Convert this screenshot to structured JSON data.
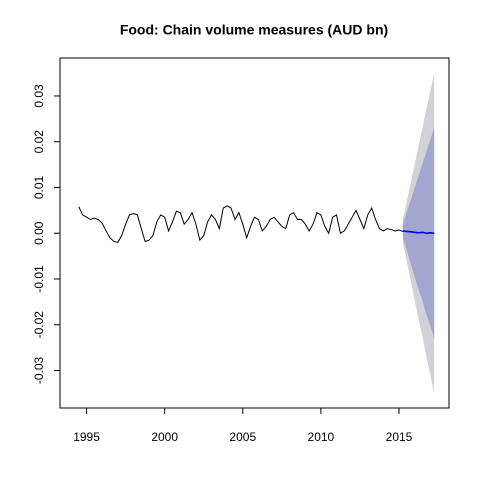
{
  "chart_data": {
    "type": "line",
    "title": "Food: Chain volume measures (AUD bn)",
    "xlim": [
      1993.3,
      2018.2
    ],
    "ylim": [
      -0.0382,
      0.0383
    ],
    "xticks": [
      1995,
      2000,
      2005,
      2010,
      2015
    ],
    "yticks": [
      -0.03,
      -0.02,
      -0.01,
      {
        "value": 0,
        "label": "0.00"
      },
      0.01,
      0.02,
      0.03
    ],
    "series": [
      {
        "color": "#000000",
        "x": [
          1994.5,
          1994.75,
          1995,
          1995.25,
          1995.5,
          1995.75,
          1996,
          1996.25,
          1996.5,
          1996.75,
          1997,
          1997.25,
          1997.5,
          1997.75,
          1998,
          1998.25,
          1998.5,
          1998.75,
          1999,
          1999.25,
          1999.5,
          1999.75,
          2000,
          2000.25,
          2000.5,
          2000.75,
          2001,
          2001.25,
          2001.5,
          2001.75,
          2002,
          2002.25,
          2002.5,
          2002.75,
          2003,
          2003.25,
          2003.5,
          2003.75,
          2004,
          2004.25,
          2004.5,
          2004.75,
          2005,
          2005.25,
          2005.5,
          2005.75,
          2006,
          2006.25,
          2006.5,
          2006.75,
          2007,
          2007.25,
          2007.5,
          2007.75,
          2008,
          2008.25,
          2008.5,
          2008.75,
          2009,
          2009.25,
          2009.5,
          2009.75,
          2010,
          2010.25,
          2010.5,
          2010.75,
          2011,
          2011.25,
          2011.5,
          2011.75,
          2012,
          2012.25,
          2012.5,
          2012.75,
          2013,
          2013.25,
          2013.5,
          2013.75,
          2014,
          2014.25,
          2014.5,
          2014.75,
          2015,
          2015.25
        ],
        "values": [
          0.0058,
          0.004,
          0.0035,
          0.003,
          0.0033,
          0.003,
          0.0022,
          0.0005,
          -0.001,
          -0.0018,
          -0.002,
          -0.0005,
          0.002,
          0.004,
          0.0043,
          0.004,
          0.001,
          -0.0018,
          -0.0015,
          -0.0005,
          0.0025,
          0.004,
          0.0035,
          0.0005,
          0.0025,
          0.0048,
          0.0045,
          0.002,
          0.003,
          0.0045,
          0.002,
          -0.0015,
          -0.0005,
          0.0025,
          0.004,
          0.003,
          0.001,
          0.0055,
          0.006,
          0.0055,
          0.003,
          0.0045,
          0.002,
          -0.001,
          0.0015,
          0.0035,
          0.003,
          0.0005,
          0.0015,
          0.003,
          0.0035,
          0.0025,
          0.0015,
          0.001,
          0.004,
          0.0045,
          0.003,
          0.003,
          0.002,
          0.0005,
          0.002,
          0.0045,
          0.004,
          0.0015,
          0,
          0.0035,
          0.004,
          0,
          0.0005,
          0.002,
          0.0035,
          0.005,
          0.003,
          0.001,
          0.004,
          0.0055,
          0.003,
          0.001,
          0.0005,
          0.001,
          0.0008,
          0.0005,
          0.0007,
          0.0004
        ]
      },
      {
        "color": "#0000ff",
        "x": [
          2015.25,
          2015.5,
          2015.75,
          2016,
          2016.25,
          2016.5,
          2016.75,
          2017,
          2017.25
        ],
        "values": [
          0.0005,
          0.0004,
          0.0003,
          0.0002,
          0.0001,
          0.0002,
          0,
          0.0001,
          0
        ]
      }
    ],
    "bands": [
      {
        "color": "#d1d1d6",
        "x": [
          2015.25,
          2015.5,
          2015.75,
          2016,
          2016.25,
          2016.5,
          2016.75,
          2017,
          2017.25
        ],
        "upper": [
          0.003,
          0.007,
          0.011,
          0.015,
          0.019,
          0.023,
          0.027,
          0.031,
          0.035
        ],
        "lower": [
          -0.002,
          -0.0062,
          -0.0104,
          -0.0146,
          -0.0188,
          -0.0226,
          -0.027,
          -0.0308,
          -0.035
        ]
      },
      {
        "color": "#a3a7d0",
        "x": [
          2015.25,
          2015.5,
          2015.75,
          2016,
          2016.25,
          2016.5,
          2016.75,
          2017,
          2017.25
        ],
        "upper": [
          0.002,
          0.0046,
          0.0073,
          0.0099,
          0.0125,
          0.0151,
          0.0178,
          0.0204,
          0.023
        ],
        "lower": [
          -0.001,
          -0.0038,
          -0.0067,
          -0.0095,
          -0.0123,
          -0.0147,
          -0.0178,
          -0.0202,
          -0.023
        ]
      }
    ]
  }
}
